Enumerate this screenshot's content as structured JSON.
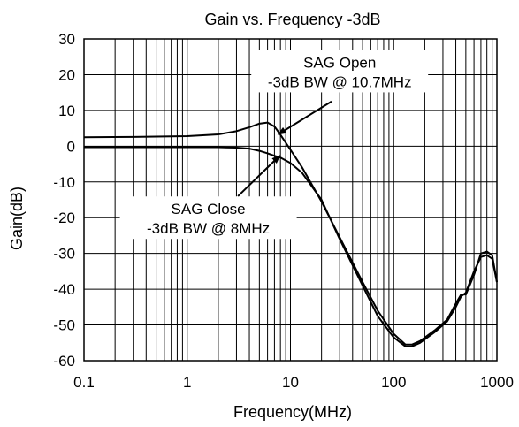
{
  "chart_data": {
    "type": "line",
    "title": "Gain vs. Frequency -3dB",
    "xlabel": "Frequency(MHz)",
    "ylabel": "Gain(dB)",
    "x_scale": "log",
    "xlim": [
      0.1,
      1000
    ],
    "ylim": [
      -60,
      30
    ],
    "x_ticks": [
      0.1,
      1,
      10,
      100,
      1000
    ],
    "x_tick_labels": [
      "0.1",
      "1",
      "10",
      "100",
      "1000"
    ],
    "y_ticks": [
      30,
      20,
      10,
      0,
      -10,
      -20,
      -30,
      -40,
      -50,
      -60
    ],
    "y_tick_labels": [
      "30",
      "20",
      "10",
      "0",
      "-10",
      "-20",
      "-30",
      "-40",
      "-50",
      "-60"
    ],
    "grid": true,
    "line_color": "#000000",
    "series": [
      {
        "x": [
          0.1,
          0.3,
          1,
          2,
          3,
          4,
          5,
          6,
          7,
          8,
          10,
          13,
          20,
          30,
          50,
          70,
          100,
          130,
          150,
          180,
          250,
          330,
          400,
          450,
          500,
          600,
          700,
          800,
          900,
          1000
        ],
        "y": [
          2.5,
          2.6,
          2.8,
          3.3,
          4.2,
          5.3,
          6.3,
          6.6,
          5.5,
          3.2,
          -1.0,
          -6.0,
          -15.5,
          -25.5,
          -38.0,
          -46.0,
          -52.5,
          -55.5,
          -55.5,
          -54.5,
          -51.5,
          -48.5,
          -44.0,
          -41.5,
          -41.5,
          -36.0,
          -30.0,
          -29.5,
          -30.5,
          -38.0
        ]
      },
      {
        "x": [
          0.1,
          0.3,
          1,
          2,
          3,
          4,
          5,
          6,
          7,
          8,
          10,
          13,
          20,
          30,
          50,
          70,
          100,
          130,
          150,
          180,
          250,
          330,
          400,
          450,
          500,
          600,
          700,
          800,
          900,
          1000
        ],
        "y": [
          -0.3,
          -0.3,
          -0.3,
          -0.3,
          -0.4,
          -0.7,
          -1.3,
          -2.0,
          -2.7,
          -3.2,
          -4.7,
          -7.5,
          -15.0,
          -26.0,
          -39.0,
          -47.5,
          -53.5,
          -56.0,
          -56.0,
          -55.0,
          -52.0,
          -49.0,
          -45.0,
          -42.0,
          -41.0,
          -35.0,
          -31.0,
          -30.5,
          -31.5,
          -38.0
        ]
      }
    ],
    "annotations": [
      {
        "line1": "SAG Open",
        "line2": "-3dB BW @ 10.7MHz",
        "text_x": 30,
        "text_y": 20.5,
        "arrow_from_x": 25,
        "arrow_from_y": 12.5,
        "arrow_to_x": 7.6,
        "arrow_to_y": 3.3
      },
      {
        "line1": "SAG Close",
        "line2": "-3dB BW @ 8MHz",
        "text_x": 1.6,
        "text_y": -20.5,
        "arrow_from_x": 3.1,
        "arrow_from_y": -14.0,
        "arrow_to_x": 7.9,
        "arrow_to_y": -2.6
      }
    ]
  }
}
